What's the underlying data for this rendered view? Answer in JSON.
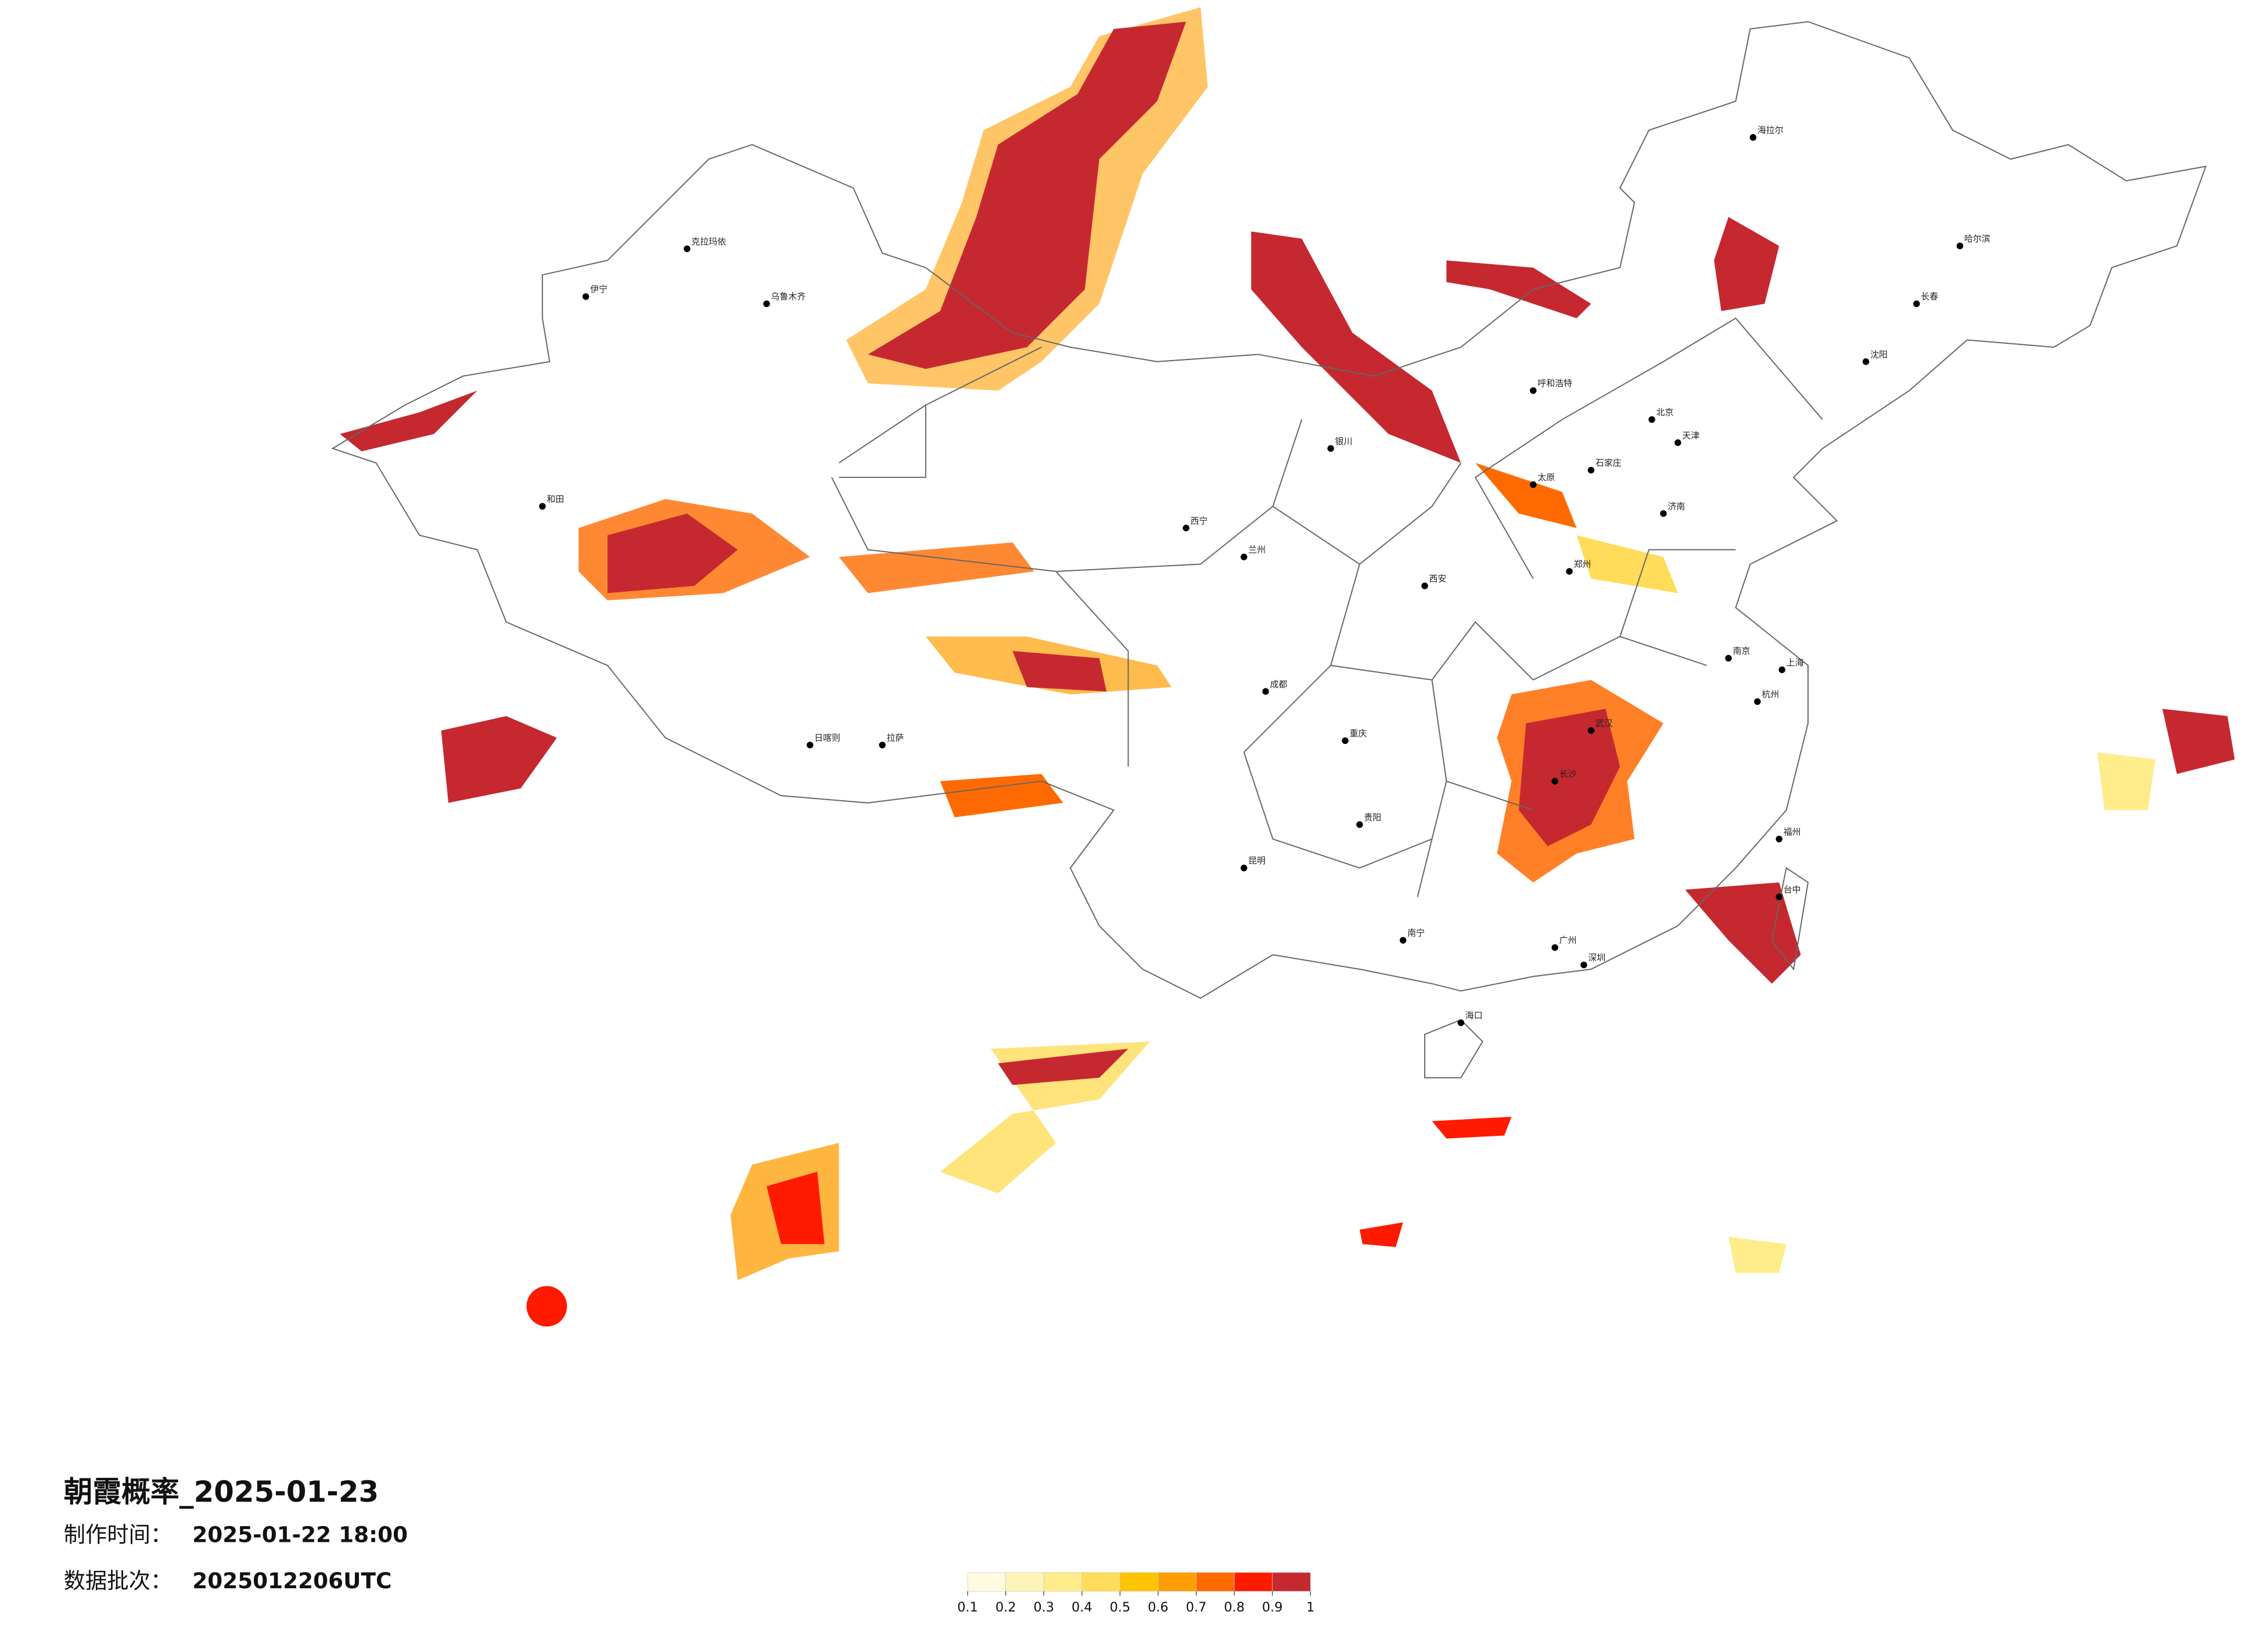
{
  "title": "朝霞概率_2025-01-23",
  "make_time": {
    "label": "制作时间：",
    "value": "2025-01-22 18:00"
  },
  "batch": {
    "label": "数据批次：",
    "value": "2025012206UTC"
  },
  "legend": {
    "ticks": [
      0.1,
      0.2,
      0.3,
      0.4,
      0.5,
      0.6,
      0.7,
      0.8,
      0.9,
      1
    ],
    "colors": [
      "#fffae0",
      "#fff4b8",
      "#ffec8a",
      "#ffdc5a",
      "#ffc400",
      "#ff9e00",
      "#ff6a00",
      "#ff1a00",
      "#c62830"
    ]
  },
  "cities": [
    "北京",
    "天津",
    "上海",
    "广州",
    "深圳",
    "重庆",
    "成都",
    "西安",
    "武汉",
    "长沙",
    "南京",
    "杭州",
    "哈尔滨",
    "长春",
    "沈阳",
    "呼和浩特",
    "乌鲁木齐",
    "拉萨",
    "昆明",
    "贵阳",
    "南宁",
    "海口",
    "兰州",
    "西宁",
    "银川",
    "郑州",
    "济南",
    "太原",
    "石家庄",
    "福州",
    "台中",
    "和田",
    "伊宁",
    "克拉玛依",
    "日喀则",
    "海拉尔"
  ]
}
